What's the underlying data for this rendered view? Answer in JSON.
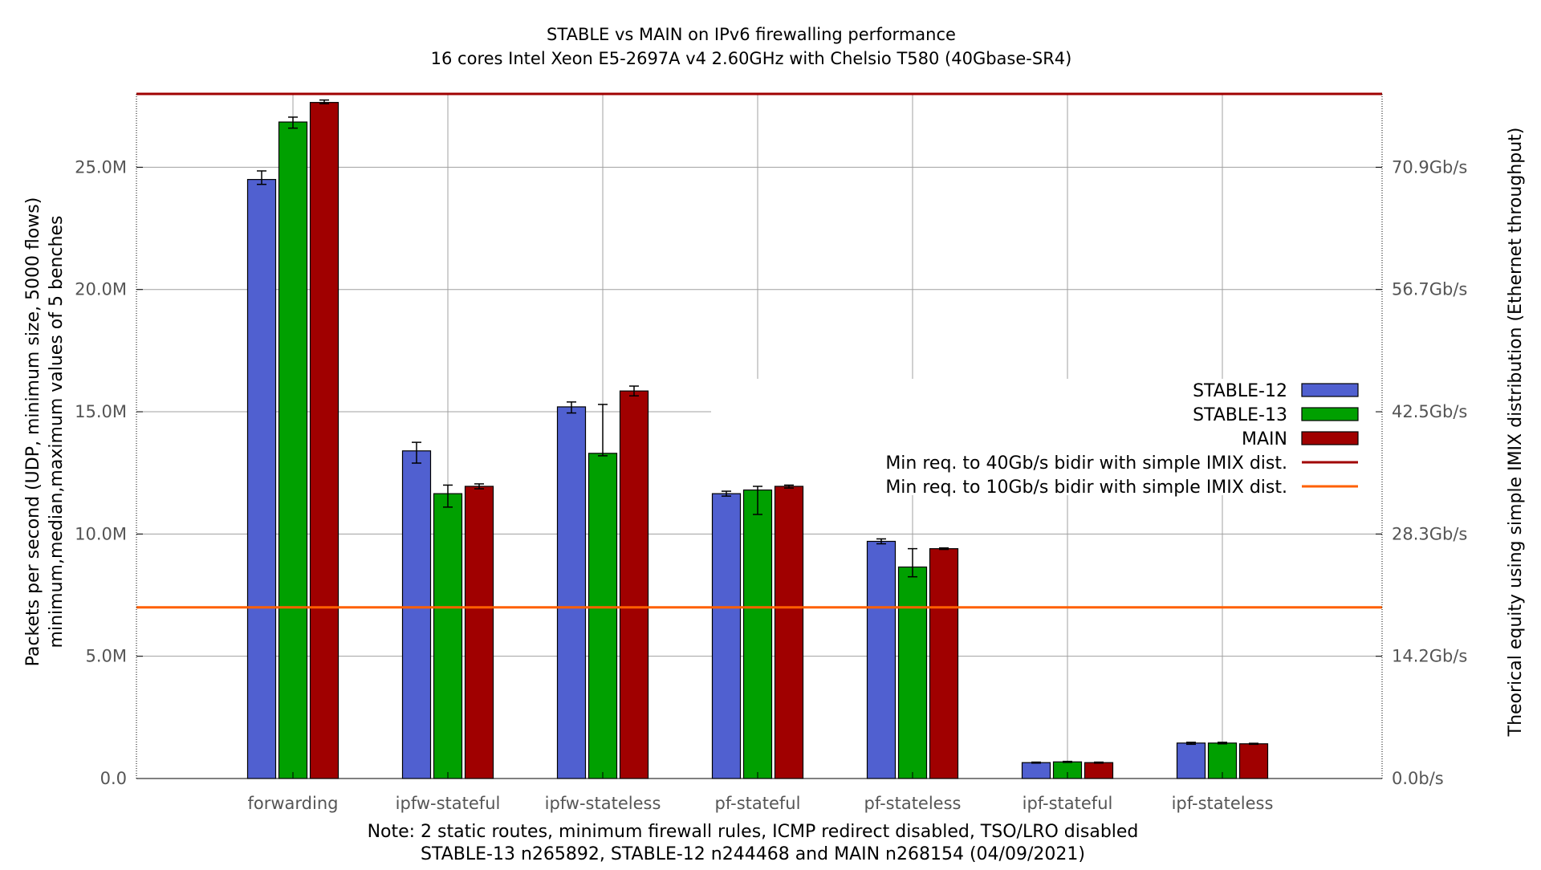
{
  "chart_data": {
    "type": "bar",
    "title": "STABLE vs MAIN on IPv6 firewalling performance",
    "subtitle": "16 cores Intel Xeon E5-2697A v4 2.60GHz with Chelsio T580 (40Gbase-SR4)",
    "ylabel_line1": "Packets per second (UDP, minimum size, 5000 flows)",
    "ylabel_line2": "minimum,median,maximum values of 5 benches",
    "y2label": "Theorical equity using simple IMIX distribution (Ethernet throughput)",
    "note_line1": "Note: 2 static routes, minimum firewall rules, ICMP redirect disabled, TSO/LRO disabled",
    "note_line2": "STABLE-13 n265892, STABLE-12 n244468 and MAIN n268154 (04/09/2021)",
    "ylim": [
      0,
      28000000
    ],
    "yticks": [
      {
        "value": 0,
        "label": "0.0"
      },
      {
        "value": 5000000,
        "label": "5.0M"
      },
      {
        "value": 10000000,
        "label": "10.0M"
      },
      {
        "value": 15000000,
        "label": "15.0M"
      },
      {
        "value": 20000000,
        "label": "20.0M"
      },
      {
        "value": 25000000,
        "label": "25.0M"
      }
    ],
    "y2ticks": [
      {
        "value": 0,
        "label": "0.0b/s"
      },
      {
        "value": 5000000,
        "label": "14.2Gb/s"
      },
      {
        "value": 10000000,
        "label": "28.3Gb/s"
      },
      {
        "value": 15000000,
        "label": "42.5Gb/s"
      },
      {
        "value": 20000000,
        "label": "56.7Gb/s"
      },
      {
        "value": 25000000,
        "label": "70.9Gb/s"
      }
    ],
    "categories": [
      "forwarding",
      "ipfw-stateful",
      "ipfw-stateless",
      "pf-stateful",
      "pf-stateless",
      "ipf-stateful",
      "ipf-stateless"
    ],
    "series": [
      {
        "name": "STABLE-12",
        "color": "#5060d0",
        "values": [
          24500000,
          13400000,
          15200000,
          11650000,
          9700000,
          650000,
          1450000
        ],
        "min": [
          24300000,
          12900000,
          14950000,
          11550000,
          9600000,
          630000,
          1400000
        ],
        "max": [
          24850000,
          13750000,
          15400000,
          11750000,
          9800000,
          670000,
          1480000
        ]
      },
      {
        "name": "STABLE-13",
        "color": "#00a000",
        "values": [
          26850000,
          11650000,
          13300000,
          11800000,
          8650000,
          680000,
          1450000
        ],
        "min": [
          26600000,
          11100000,
          13200000,
          10800000,
          8250000,
          660000,
          1420000
        ],
        "max": [
          27050000,
          12000000,
          15300000,
          11950000,
          9400000,
          700000,
          1480000
        ]
      },
      {
        "name": "MAIN",
        "color": "#a00000",
        "values": [
          27650000,
          11950000,
          15850000,
          11950000,
          9400000,
          650000,
          1420000
        ],
        "min": [
          27600000,
          11850000,
          15650000,
          11880000,
          9370000,
          630000,
          1400000
        ],
        "max": [
          27750000,
          12050000,
          16050000,
          12000000,
          9430000,
          670000,
          1440000
        ]
      }
    ],
    "reference_lines": [
      {
        "name": "Min req. to 40Gb/s bidir with simple IMIX dist.",
        "value": 28000000,
        "color": "#a00000"
      },
      {
        "name": "Min req. to 10Gb/s bidir with simple IMIX dist.",
        "value": 7000000,
        "color": "#ff6000"
      }
    ],
    "legend_position": "right-middle",
    "grid": true
  }
}
